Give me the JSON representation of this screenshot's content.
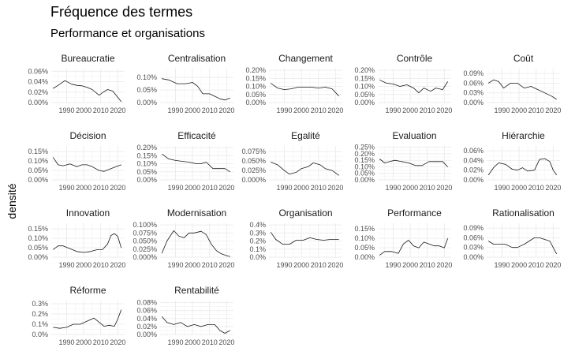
{
  "title": "Fréquence des termes",
  "subtitle": "Performance et organisations",
  "chart_data": {
    "type": "line",
    "title": "Fréquence des termes",
    "subtitle": "Performance et organisations",
    "ylabel": "densité",
    "xlabel": "",
    "x_ticks": [
      1990,
      2000,
      2010,
      2020
    ],
    "x_range": [
      1981,
      2024
    ],
    "grid": true,
    "panels": [
      {
        "name": "Bureaucratie",
        "ticks": [
          0,
          0.0002,
          0.0004,
          0.0006
        ],
        "tick_labels": [
          "0.00%",
          "0.02%",
          "0.04%",
          "0.06%"
        ],
        "ylim": [
          0,
          0.00065
        ],
        "x": [
          1982,
          1985,
          1989,
          1993,
          1996,
          1999,
          2002,
          2005,
          2009,
          2012,
          2014,
          2017,
          2020,
          2022
        ],
        "y": [
          0.00027,
          0.00033,
          0.00042,
          0.00035,
          0.00033,
          0.00032,
          0.00029,
          0.00025,
          0.00014,
          0.00021,
          0.00025,
          0.00022,
          0.0001,
          2e-05
        ]
      },
      {
        "name": "Centralisation",
        "ticks": [
          0,
          0.0005,
          0.001
        ],
        "tick_labels": [
          "0.00%",
          "0.05%",
          "0.10%"
        ],
        "ylim": [
          0,
          0.00135
        ],
        "x": [
          1982,
          1986,
          1991,
          1996,
          2000,
          2003,
          2006,
          2010,
          2013,
          2016,
          2019,
          2022
        ],
        "y": [
          0.00095,
          0.0009,
          0.00075,
          0.00075,
          0.0008,
          0.00065,
          0.00035,
          0.00035,
          0.00025,
          0.00015,
          0.0001,
          0.00018
        ]
      },
      {
        "name": "Changement",
        "ticks": [
          0,
          0.0005,
          0.001,
          0.0015,
          0.002
        ],
        "tick_labels": [
          "0.00%",
          "0.05%",
          "0.10%",
          "0.15%",
          "0.20%"
        ],
        "ylim": [
          0,
          0.0021
        ],
        "x": [
          1982,
          1986,
          1990,
          1994,
          1998,
          2002,
          2006,
          2010,
          2014,
          2018,
          2022
        ],
        "y": [
          0.0012,
          0.0009,
          0.0008,
          0.00085,
          0.00095,
          0.00095,
          0.00095,
          0.0009,
          0.00095,
          0.00085,
          0.0004
        ]
      },
      {
        "name": "Contrôle",
        "ticks": [
          0,
          0.0005,
          0.001,
          0.0015,
          0.002
        ],
        "tick_labels": [
          "0.00%",
          "0.05%",
          "0.10%",
          "0.15%",
          "0.20%"
        ],
        "ylim": [
          0,
          0.0021
        ],
        "x": [
          1982,
          1986,
          1990,
          1994,
          1998,
          2002,
          2005,
          2008,
          2012,
          2015,
          2019,
          2022
        ],
        "y": [
          0.0014,
          0.0012,
          0.00115,
          0.001,
          0.0011,
          0.0009,
          0.0006,
          0.0009,
          0.0007,
          0.0009,
          0.0008,
          0.0013
        ]
      },
      {
        "name": "Coût",
        "ticks": [
          0,
          0.0003,
          0.0006,
          0.0009
        ],
        "tick_labels": [
          "0.00%",
          "0.03%",
          "0.06%",
          "0.09%"
        ],
        "ylim": [
          0,
          0.00105
        ],
        "x": [
          1982,
          1985,
          1988,
          1991,
          1995,
          1999,
          2003,
          2007,
          2011,
          2015,
          2019,
          2022
        ],
        "y": [
          0.0006,
          0.0007,
          0.00065,
          0.00045,
          0.0006,
          0.0006,
          0.00045,
          0.0005,
          0.0004,
          0.0003,
          0.0002,
          0.0001
        ]
      },
      {
        "name": "Décision",
        "ticks": [
          0,
          0.0005,
          0.001,
          0.0015
        ],
        "tick_labels": [
          "0.00%",
          "0.05%",
          "0.10%",
          "0.15%"
        ],
        "ylim": [
          0,
          0.0018
        ],
        "x": [
          1982,
          1985,
          1988,
          1992,
          1996,
          1999,
          2002,
          2005,
          2009,
          2012,
          2016,
          2019,
          2022
        ],
        "y": [
          0.0012,
          0.0008,
          0.00075,
          0.00085,
          0.0007,
          0.0008,
          0.0008,
          0.0007,
          0.0005,
          0.00045,
          0.0006,
          0.0007,
          0.0008
        ]
      },
      {
        "name": "Efficacité",
        "ticks": [
          0,
          0.0005,
          0.001,
          0.0015,
          0.002
        ],
        "tick_labels": [
          "0.00%",
          "0.05%",
          "0.10%",
          "0.15%",
          "0.20%"
        ],
        "ylim": [
          0,
          0.0021
        ],
        "x": [
          1982,
          1986,
          1990,
          1994,
          1998,
          2002,
          2005,
          2008,
          2012,
          2016,
          2019,
          2022
        ],
        "y": [
          0.0016,
          0.0013,
          0.0012,
          0.00115,
          0.0011,
          0.001,
          0.001,
          0.0011,
          0.0007,
          0.0007,
          0.0007,
          0.0005
        ]
      },
      {
        "name": "Egalité",
        "ticks": [
          0,
          0.00025,
          0.0005,
          0.00075
        ],
        "tick_labels": [
          "0.000%",
          "0.025%",
          "0.050%",
          "0.075%"
        ],
        "ylim": [
          0,
          0.0009
        ],
        "x": [
          1982,
          1986,
          1990,
          1993,
          1997,
          2000,
          2004,
          2007,
          2011,
          2014,
          2018,
          2022
        ],
        "y": [
          0.00047,
          0.0004,
          0.00025,
          0.00015,
          0.0002,
          0.0003,
          0.00035,
          0.00045,
          0.0004,
          0.0003,
          0.00025,
          0.00012
        ]
      },
      {
        "name": "Evaluation",
        "ticks": [
          0,
          0.0005,
          0.001,
          0.0015,
          0.002,
          0.0025
        ],
        "tick_labels": [
          "0.00%",
          "0.05%",
          "0.10%",
          "0.15%",
          "0.20%",
          "0.25%"
        ],
        "ylim": [
          0,
          0.0026
        ],
        "x": [
          1982,
          1985,
          1988,
          1991,
          1995,
          1999,
          2003,
          2007,
          2011,
          2015,
          2019,
          2022
        ],
        "y": [
          0.0016,
          0.0013,
          0.0014,
          0.0015,
          0.0014,
          0.0013,
          0.0011,
          0.0011,
          0.0014,
          0.0014,
          0.0014,
          0.001
        ]
      },
      {
        "name": "Hiérarchie",
        "ticks": [
          0,
          0.0002,
          0.0004,
          0.0006
        ],
        "tick_labels": [
          "0.00%",
          "0.02%",
          "0.04%",
          "0.06%"
        ],
        "ylim": [
          0,
          0.0007
        ],
        "x": [
          1982,
          1985,
          1988,
          1992,
          1996,
          1999,
          2002,
          2005,
          2009,
          2012,
          2015,
          2018,
          2020,
          2022
        ],
        "y": [
          0.0001,
          0.00025,
          0.00035,
          0.00032,
          0.00022,
          0.0002,
          0.00025,
          0.00018,
          0.0002,
          0.00042,
          0.00044,
          0.00038,
          0.0002,
          0.0001
        ]
      },
      {
        "name": "Innovation",
        "ticks": [
          0,
          0.0005,
          0.001,
          0.0015
        ],
        "tick_labels": [
          "0.00%",
          "0.05%",
          "0.10%",
          "0.15%"
        ],
        "ylim": [
          0,
          0.0018
        ],
        "x": [
          1982,
          1985,
          1988,
          1992,
          1996,
          2000,
          2004,
          2008,
          2011,
          2014,
          2016,
          2018,
          2020,
          2022
        ],
        "y": [
          0.0004,
          0.0006,
          0.0006,
          0.00045,
          0.0003,
          0.00025,
          0.0003,
          0.0004,
          0.0004,
          0.0007,
          0.00115,
          0.00125,
          0.0011,
          0.0005
        ]
      },
      {
        "name": "Modernisation",
        "ticks": [
          0,
          0.00025,
          0.0005,
          0.00075,
          0.001
        ],
        "tick_labels": [
          "0.000%",
          "0.025%",
          "0.050%",
          "0.075%",
          "0.100%"
        ],
        "ylim": [
          0,
          0.00105
        ],
        "x": [
          1982,
          1985,
          1989,
          1992,
          1995,
          1998,
          2001,
          2005,
          2008,
          2011,
          2014,
          2017,
          2020,
          2022
        ],
        "y": [
          0.00012,
          0.0005,
          0.00082,
          0.00065,
          0.0006,
          0.00075,
          0.00075,
          0.0008,
          0.0007,
          0.0004,
          0.0002,
          0.0001,
          5e-05,
          2e-05
        ]
      },
      {
        "name": "Organisation",
        "ticks": [
          0,
          0.001,
          0.002,
          0.003,
          0.004
        ],
        "tick_labels": [
          "0.0%",
          "0.1%",
          "0.2%",
          "0.3%",
          "0.4%"
        ],
        "ylim": [
          0,
          0.0042
        ],
        "x": [
          1982,
          1985,
          1989,
          1993,
          1997,
          2001,
          2005,
          2009,
          2013,
          2017,
          2022
        ],
        "y": [
          0.0031,
          0.0022,
          0.0016,
          0.0016,
          0.0021,
          0.0021,
          0.0024,
          0.0022,
          0.0021,
          0.0022,
          0.0022
        ]
      },
      {
        "name": "Performance",
        "ticks": [
          0,
          0.0005,
          0.001,
          0.0015
        ],
        "tick_labels": [
          "0.00%",
          "0.05%",
          "0.10%",
          "0.15%"
        ],
        "ylim": [
          0,
          0.0018
        ],
        "x": [
          1982,
          1985,
          1989,
          1993,
          1996,
          1999,
          2002,
          2005,
          2008,
          2011,
          2014,
          2017,
          2020,
          2022
        ],
        "y": [
          0.0001,
          0.0003,
          0.0003,
          0.0002,
          0.0007,
          0.0009,
          0.0006,
          0.0005,
          0.0008,
          0.0007,
          0.0006,
          0.0006,
          0.0005,
          0.001
        ]
      },
      {
        "name": "Rationalisation",
        "ticks": [
          0,
          0.0003,
          0.0006,
          0.0009
        ],
        "tick_labels": [
          "0.00%",
          "0.03%",
          "0.06%",
          "0.09%"
        ],
        "ylim": [
          0,
          0.00105
        ],
        "x": [
          1982,
          1985,
          1989,
          1992,
          1996,
          1999,
          2003,
          2006,
          2009,
          2012,
          2015,
          2018,
          2020,
          2022
        ],
        "y": [
          0.0005,
          0.0004,
          0.0004,
          0.0004,
          0.0003,
          0.0003,
          0.0004,
          0.0005,
          0.0006,
          0.0006,
          0.00055,
          0.0005,
          0.0003,
          0.0001
        ]
      },
      {
        "name": "Réforme",
        "ticks": [
          0,
          0.001,
          0.002,
          0.003
        ],
        "tick_labels": [
          "0.0%",
          "0.1%",
          "0.2%",
          "0.3%"
        ],
        "ylim": [
          0,
          0.0033
        ],
        "x": [
          1982,
          1986,
          1990,
          1994,
          1998,
          2002,
          2006,
          2009,
          2012,
          2015,
          2018,
          2020,
          2022
        ],
        "y": [
          0.0007,
          0.0006,
          0.0007,
          0.001,
          0.001,
          0.0013,
          0.0016,
          0.0012,
          0.0008,
          0.0009,
          0.0008,
          0.0015,
          0.0024
        ]
      },
      {
        "name": "Rentabilité",
        "ticks": [
          0,
          0.0002,
          0.0004,
          0.0006,
          0.0008
        ],
        "tick_labels": [
          "0.00%",
          "0.02%",
          "0.04%",
          "0.06%",
          "0.08%"
        ],
        "ylim": [
          0,
          0.00085
        ],
        "x": [
          1982,
          1985,
          1989,
          1993,
          1997,
          2001,
          2005,
          2009,
          2013,
          2016,
          2019,
          2022
        ],
        "y": [
          0.00045,
          0.0003,
          0.00025,
          0.0003,
          0.0002,
          0.00025,
          0.0002,
          0.00025,
          0.00025,
          0.0001,
          3e-05,
          0.0001
        ]
      }
    ]
  }
}
